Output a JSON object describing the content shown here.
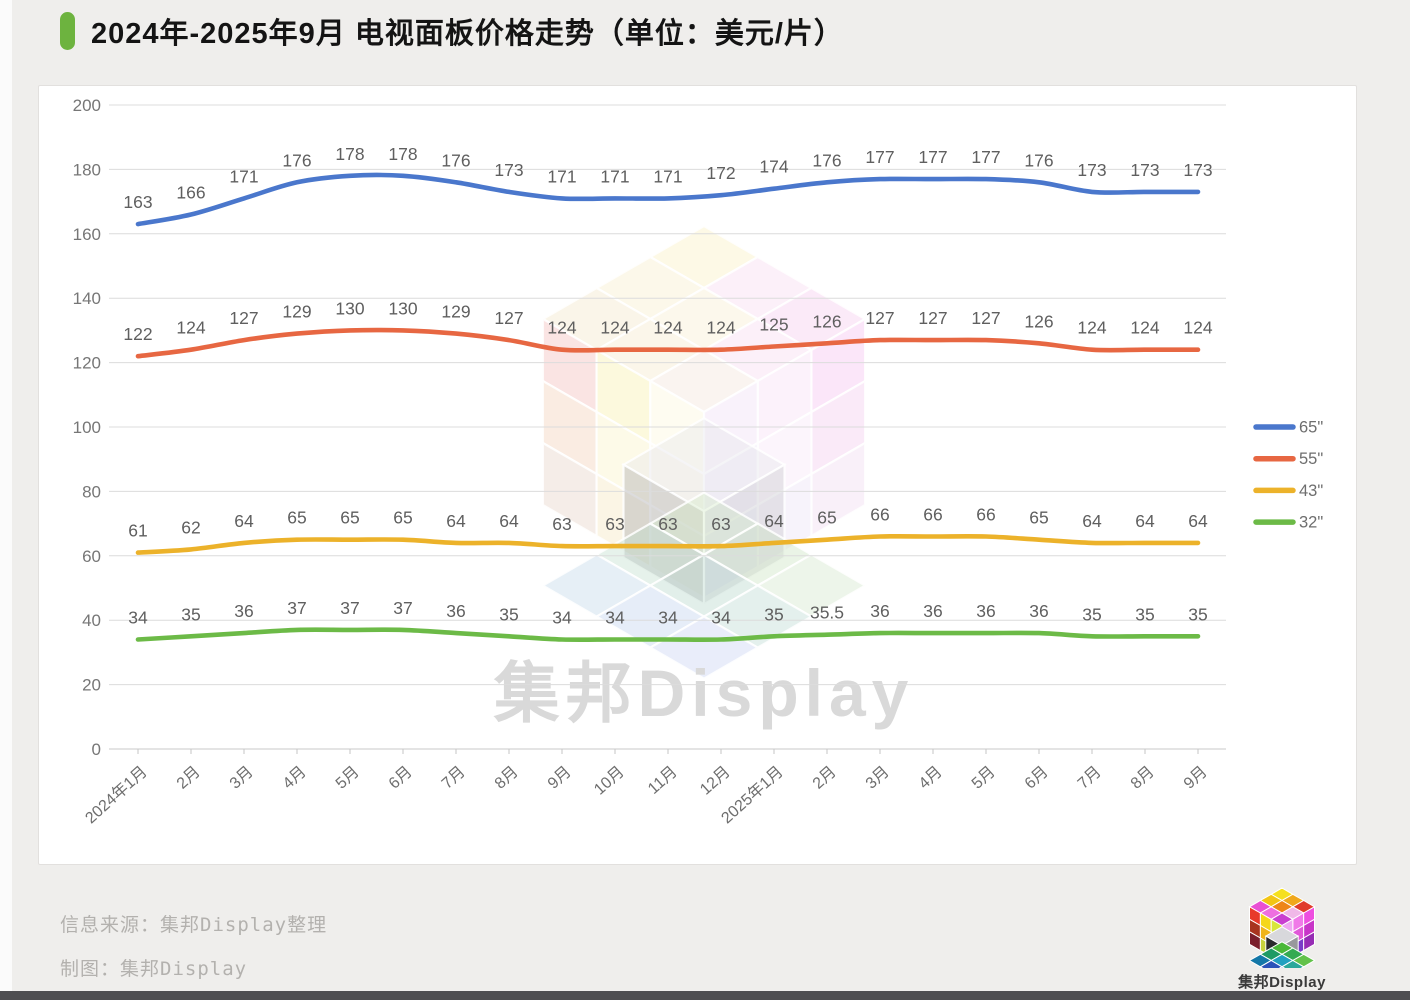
{
  "title": {
    "text": "2024年-2025年9月 电视面板价格走势（单位：美元/片）",
    "accent_color": "#6db33f"
  },
  "chart_data": {
    "type": "line",
    "title": "2024年-2025年9月 电视面板价格走势（单位：美元/片）",
    "categories": [
      "2024年1月",
      "2月",
      "3月",
      "4月",
      "5月",
      "6月",
      "7月",
      "8月",
      "9月",
      "10月",
      "11月",
      "12月",
      "2025年1月",
      "2月",
      "3月",
      "4月",
      "5月",
      "6月",
      "7月",
      "8月",
      "9月"
    ],
    "series": [
      {
        "name": "65\"",
        "color": "#4a77cc",
        "values": [
          163,
          166,
          171,
          176,
          178,
          178,
          176,
          173,
          171,
          171,
          171,
          172,
          174,
          176,
          177,
          177,
          177,
          176,
          173,
          173,
          173
        ]
      },
      {
        "name": "55\"",
        "color": "#e76742",
        "values": [
          122,
          124,
          127,
          129,
          130,
          130,
          129,
          127,
          124,
          124,
          124,
          124,
          125,
          126,
          127,
          127,
          127,
          126,
          124,
          124,
          124
        ]
      },
      {
        "name": "43\"",
        "color": "#ecb22a",
        "values": [
          61,
          62,
          64,
          65,
          65,
          65,
          64,
          64,
          63,
          63,
          63,
          63,
          64,
          65,
          66,
          66,
          66,
          65,
          64,
          64,
          64
        ]
      },
      {
        "name": "32\"",
        "color": "#6cba47",
        "values": [
          34,
          35,
          36,
          37,
          37,
          37,
          36,
          35,
          34,
          34,
          34,
          34,
          35,
          35.5,
          36,
          36,
          36,
          36,
          35,
          35,
          35
        ]
      }
    ],
    "ylim": [
      0,
      200
    ],
    "ytick_step": 20,
    "yticks": [
      "0",
      "20",
      "40",
      "60",
      "80",
      "100",
      "120",
      "140",
      "160",
      "180",
      "200"
    ],
    "grid": true,
    "legend_position": "right",
    "xlabel": "",
    "ylabel": "",
    "watermark": "集邦Display"
  },
  "footer": {
    "source": "信息来源：集邦Display整理",
    "credit": "制图：集邦Display",
    "logo_text": "集邦Display"
  }
}
